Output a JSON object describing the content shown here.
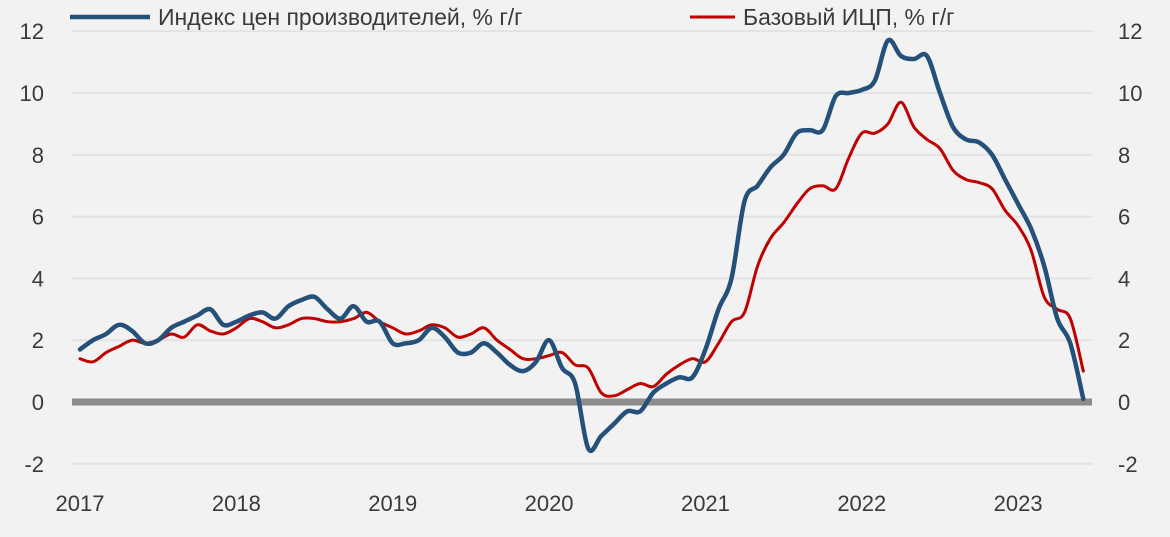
{
  "chart_data": {
    "type": "line",
    "title": "",
    "xlabel": "",
    "ylabel": "",
    "ylim": [
      -2,
      12
    ],
    "yticks": [
      "-2",
      "0",
      "2",
      "4",
      "6",
      "8",
      "10",
      "12"
    ],
    "xticks": [
      "2017",
      "2018",
      "2019",
      "2020",
      "2021",
      "2022",
      "2023"
    ],
    "x_start": "2017-01",
    "x_frequency": "monthly",
    "legend_position": "top",
    "grid": true,
    "series": [
      {
        "name": "Индекс цен производителей, % г/г",
        "color": "#24507a",
        "values": [
          1.7,
          2.0,
          2.2,
          2.5,
          2.3,
          1.9,
          2.0,
          2.4,
          2.6,
          2.8,
          3.0,
          2.5,
          2.6,
          2.8,
          2.9,
          2.7,
          3.1,
          3.3,
          3.4,
          3.0,
          2.7,
          3.1,
          2.6,
          2.6,
          1.9,
          1.9,
          2.0,
          2.4,
          2.1,
          1.6,
          1.6,
          1.9,
          1.6,
          1.2,
          1.0,
          1.3,
          2.0,
          1.1,
          0.6,
          -1.5,
          -1.1,
          -0.7,
          -0.3,
          -0.3,
          0.3,
          0.6,
          0.8,
          0.8,
          1.7,
          3.0,
          4.0,
          6.5,
          7.0,
          7.6,
          8.0,
          8.7,
          8.8,
          8.8,
          9.9,
          10.0,
          10.1,
          10.4,
          11.7,
          11.2,
          11.1,
          11.2,
          10.0,
          8.9,
          8.5,
          8.4,
          8.0,
          7.2,
          6.4,
          5.6,
          4.4,
          2.7,
          1.9,
          0.1
        ]
      },
      {
        "name": "Базовый ИЦП, % г/г",
        "color": "#c00000",
        "values": [
          1.4,
          1.3,
          1.6,
          1.8,
          2.0,
          1.9,
          2.0,
          2.2,
          2.1,
          2.5,
          2.3,
          2.2,
          2.4,
          2.7,
          2.6,
          2.4,
          2.5,
          2.7,
          2.7,
          2.6,
          2.6,
          2.7,
          2.9,
          2.6,
          2.4,
          2.2,
          2.3,
          2.5,
          2.4,
          2.1,
          2.2,
          2.4,
          2.0,
          1.7,
          1.4,
          1.4,
          1.5,
          1.6,
          1.2,
          1.1,
          0.3,
          0.2,
          0.4,
          0.6,
          0.5,
          0.9,
          1.2,
          1.4,
          1.3,
          1.9,
          2.6,
          2.9,
          4.4,
          5.3,
          5.8,
          6.4,
          6.9,
          7.0,
          6.9,
          7.9,
          8.7,
          8.7,
          9.0,
          9.7,
          8.9,
          8.5,
          8.2,
          7.5,
          7.2,
          7.1,
          6.9,
          6.2,
          5.7,
          4.9,
          3.4,
          3.0,
          2.7,
          1.0
        ]
      }
    ]
  }
}
